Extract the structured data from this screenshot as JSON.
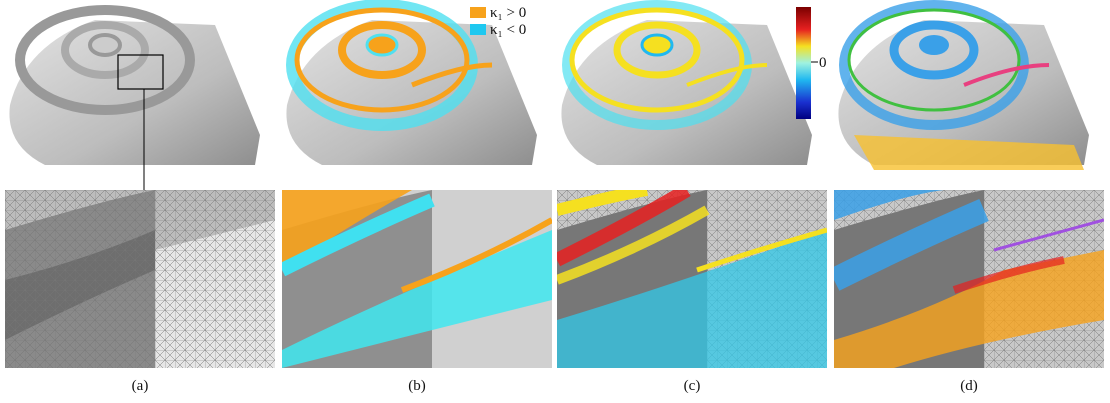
{
  "legend": [
    {
      "label": "κ₁ > 0"
    },
    {
      "label": "κ₁ < 0"
    }
  ],
  "colorbar": {
    "tick_label": "0"
  },
  "captions": [
    "(a)",
    "(b)",
    "(c)",
    "(d)"
  ]
}
